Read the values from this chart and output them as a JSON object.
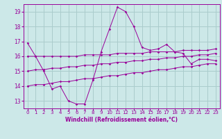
{
  "xlabel": "Windchill (Refroidissement éolien,°C)",
  "x_values": [
    0,
    1,
    2,
    3,
    4,
    5,
    6,
    7,
    8,
    9,
    10,
    11,
    12,
    13,
    14,
    15,
    16,
    17,
    18,
    19,
    20,
    21,
    22,
    23
  ],
  "series1": [
    16.9,
    16.0,
    15.0,
    13.8,
    14.0,
    13.0,
    12.8,
    12.8,
    14.4,
    16.3,
    17.8,
    19.3,
    19.0,
    18.0,
    16.6,
    16.4,
    16.5,
    16.8,
    16.3,
    16.2,
    15.5,
    15.8,
    15.8,
    15.7
  ],
  "series2": [
    16.0,
    16.0,
    16.0,
    16.0,
    16.0,
    16.0,
    16.0,
    16.1,
    16.1,
    16.1,
    16.1,
    16.2,
    16.2,
    16.2,
    16.2,
    16.3,
    16.3,
    16.3,
    16.3,
    16.4,
    16.4,
    16.4,
    16.4,
    16.5
  ],
  "series3": [
    15.0,
    15.1,
    15.1,
    15.2,
    15.2,
    15.3,
    15.3,
    15.4,
    15.4,
    15.5,
    15.5,
    15.6,
    15.6,
    15.7,
    15.7,
    15.8,
    15.8,
    15.9,
    15.9,
    16.0,
    16.0,
    16.1,
    16.1,
    16.2
  ],
  "series4": [
    14.0,
    14.1,
    14.1,
    14.2,
    14.3,
    14.3,
    14.4,
    14.5,
    14.5,
    14.6,
    14.7,
    14.7,
    14.8,
    14.9,
    14.9,
    15.0,
    15.1,
    15.1,
    15.2,
    15.3,
    15.3,
    15.4,
    15.5,
    15.5
  ],
  "line_color": "#990099",
  "bg_color": "#cce8e8",
  "grid_color": "#aacccc",
  "ylim": [
    12.5,
    19.5
  ],
  "yticks": [
    13,
    14,
    15,
    16,
    17,
    18,
    19
  ],
  "xlim": [
    -0.5,
    23.5
  ],
  "xtick_labels": [
    "0",
    "1",
    "2",
    "3",
    "4",
    "5",
    "6",
    "7",
    "8",
    "9",
    "10",
    "11",
    "12",
    "13",
    "14",
    "15",
    "16",
    "17",
    "18",
    "19",
    "20",
    "21",
    "22",
    "23"
  ]
}
